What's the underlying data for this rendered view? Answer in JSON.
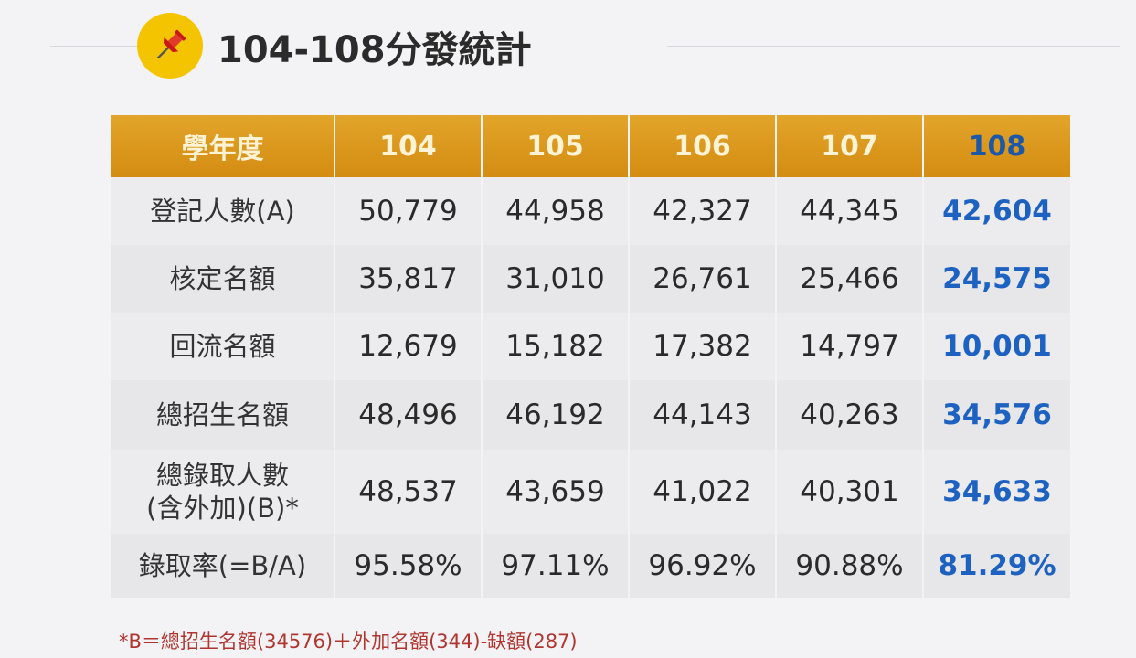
{
  "title": "104-108分發統計",
  "icon": "pushpin-icon",
  "colors": {
    "header_bg": "#d9951c",
    "header_text": "#fff3d6",
    "highlight_text": "#1d62c0",
    "footnote_text": "#b03530",
    "badge_bg": "#f5c400"
  },
  "table": {
    "headers": [
      "學年度",
      "104",
      "105",
      "106",
      "107",
      "108"
    ],
    "rows": [
      {
        "label": "登記人數(A)",
        "values": [
          "50,779",
          "44,958",
          "42,327",
          "44,345",
          "42,604"
        ]
      },
      {
        "label": "核定名額",
        "values": [
          "35,817",
          "31,010",
          "26,761",
          "25,466",
          "24,575"
        ]
      },
      {
        "label": "回流名額",
        "values": [
          "12,679",
          "15,182",
          "17,382",
          "14,797",
          "10,001"
        ]
      },
      {
        "label": "總招生名額",
        "values": [
          "48,496",
          "46,192",
          "44,143",
          "40,263",
          "34,576"
        ]
      },
      {
        "label_lines": [
          "總錄取人數",
          "(含外加)(B)*"
        ],
        "values": [
          "48,537",
          "43,659",
          "41,022",
          "40,301",
          "34,633"
        ]
      },
      {
        "label": "錄取率(=B/A)",
        "values": [
          "95.58%",
          "97.11%",
          "96.92%",
          "90.88%",
          "81.29%"
        ]
      }
    ]
  },
  "footnote": "*B＝總招生名額(34576)＋外加名額(344)-缺額(287)"
}
